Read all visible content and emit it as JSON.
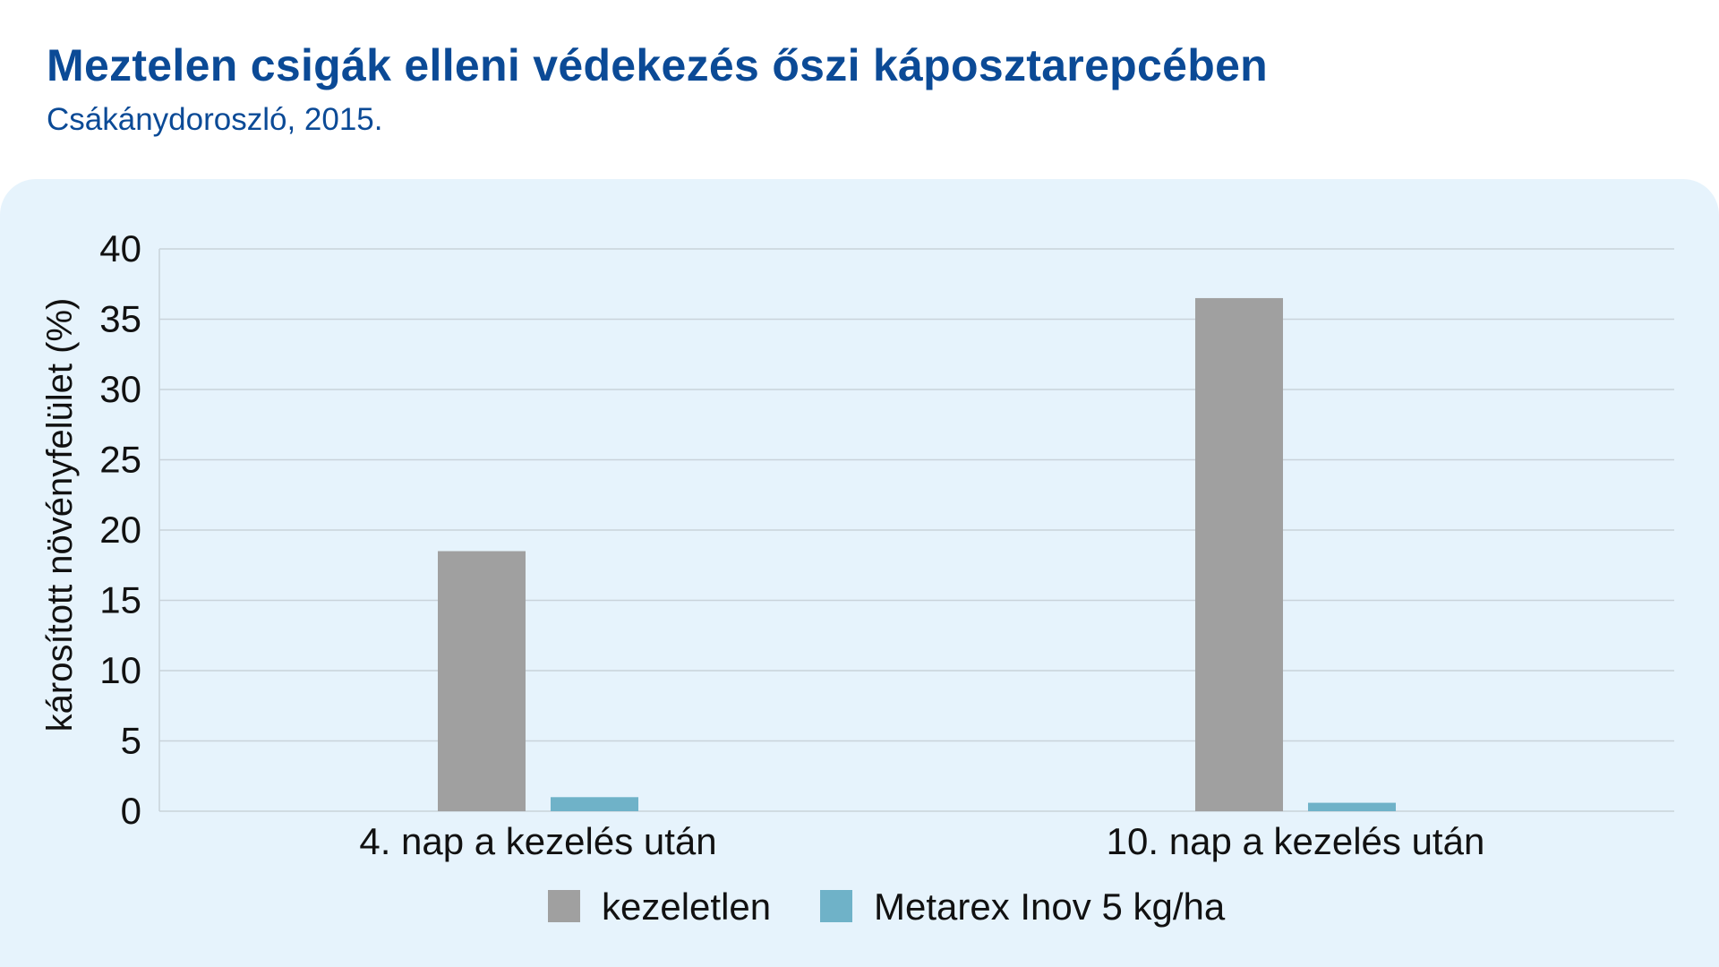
{
  "header": {
    "title": "Meztelen csigák elleni védekezés őszi káposztarepcében",
    "subtitle": "Csákánydoroszló, 2015."
  },
  "colors": {
    "title": "#0b4a96",
    "panel_background": "#e6f3fc",
    "grid": "#c9d3da",
    "series_untreated": "#a0a0a0",
    "series_treated": "#6fb2c8"
  },
  "chart_data": {
    "type": "bar",
    "title": "Meztelen csigák elleni védekezés őszi káposztarepcében",
    "subtitle": "Csákánydoroszló, 2015.",
    "ylabel": "károsított növényfelület (%)",
    "xlabel": "",
    "categories": [
      "4. nap a kezelés után",
      "10. nap a kezelés után"
    ],
    "series": [
      {
        "name": "kezeletlen",
        "values": [
          18.5,
          36.5
        ]
      },
      {
        "name": "Metarex Inov 5 kg/ha",
        "values": [
          1.0,
          0.6
        ]
      }
    ],
    "ylim": [
      0,
      40
    ],
    "yticks": [
      0,
      5,
      10,
      15,
      20,
      25,
      30,
      35,
      40
    ],
    "grid": true,
    "legend": "bottom-center"
  }
}
